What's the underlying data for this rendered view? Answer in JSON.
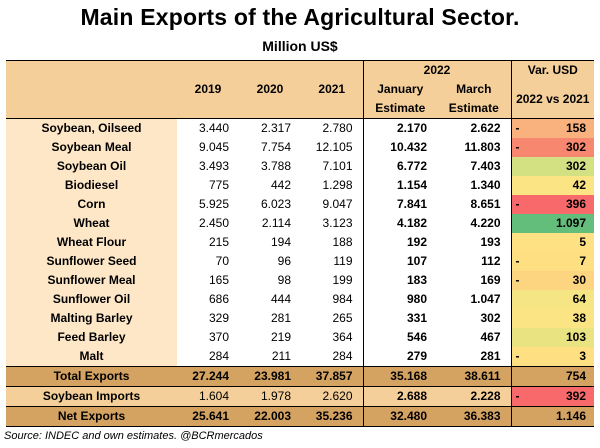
{
  "title": "Main Exports of the Agricultural Sector.",
  "subtitle": "Million US$",
  "source": "Source: INDEC and own estimates. @BCRmercados",
  "chart_data": {
    "type": "table",
    "columns": [
      "2019",
      "2020",
      "2021",
      "January Estimate",
      "March Estimate",
      "Var. USD 2022 vs 2021"
    ],
    "header": {
      "y2019": "2019",
      "y2020": "2020",
      "y2021": "2021",
      "group2022": "2022",
      "jan1": "January",
      "jan2": "Estimate",
      "mar1": "March",
      "mar2": "Estimate",
      "var1": "Var. USD",
      "var2": "2022 vs 2021"
    },
    "rows": [
      {
        "name": "Soybean, Oilseed",
        "y2019": "3.440",
        "y2020": "2.317",
        "y2021": "2.780",
        "jan": "2.170",
        "mar": "2.622",
        "sign": "-",
        "var": "158",
        "color": "#f9b27d"
      },
      {
        "name": "Soybean Meal",
        "y2019": "9.045",
        "y2020": "7.754",
        "y2021": "12.105",
        "jan": "10.432",
        "mar": "11.803",
        "sign": "-",
        "var": "302",
        "color": "#f8876f"
      },
      {
        "name": "Soybean Oil",
        "y2019": "3.493",
        "y2020": "3.788",
        "y2021": "7.101",
        "jan": "6.772",
        "mar": "7.403",
        "sign": "",
        "var": "302",
        "color": "#d3e183"
      },
      {
        "name": "Biodiesel",
        "y2019": "775",
        "y2020": "442",
        "y2021": "1.298",
        "jan": "1.154",
        "mar": "1.340",
        "sign": "",
        "var": "42",
        "color": "#fbe484"
      },
      {
        "name": "Corn",
        "y2019": "5.925",
        "y2020": "6.023",
        "y2021": "9.047",
        "jan": "7.841",
        "mar": "8.651",
        "sign": "-",
        "var": "396",
        "color": "#f8696b"
      },
      {
        "name": "Wheat",
        "y2019": "2.450",
        "y2020": "2.114",
        "y2021": "3.123",
        "jan": "4.182",
        "mar": "4.220",
        "sign": "",
        "var": "1.097",
        "color": "#63be7b"
      },
      {
        "name": "Wheat Flour",
        "y2019": "215",
        "y2020": "194",
        "y2021": "188",
        "jan": "192",
        "mar": "193",
        "sign": "",
        "var": "5",
        "color": "#fee183"
      },
      {
        "name": "Sunflower Seed",
        "y2019": "70",
        "y2020": "96",
        "y2021": "119",
        "jan": "107",
        "mar": "112",
        "sign": "-",
        "var": "7",
        "color": "#fedf82"
      },
      {
        "name": "Sunflower Meal",
        "y2019": "165",
        "y2020": "98",
        "y2021": "199",
        "jan": "183",
        "mar": "169",
        "sign": "-",
        "var": "30",
        "color": "#fdd580"
      },
      {
        "name": "Sunflower Oil",
        "y2019": "686",
        "y2020": "444",
        "y2021": "984",
        "jan": "980",
        "mar": "1.047",
        "sign": "",
        "var": "64",
        "color": "#f5e584"
      },
      {
        "name": "Malting Barley",
        "y2019": "329",
        "y2020": "281",
        "y2021": "265",
        "jan": "331",
        "mar": "302",
        "sign": "",
        "var": "38",
        "color": "#fbe483"
      },
      {
        "name": "Feed Barley",
        "y2019": "370",
        "y2020": "219",
        "y2021": "364",
        "jan": "546",
        "mar": "467",
        "sign": "",
        "var": "103",
        "color": "#eae382"
      },
      {
        "name": "Malt",
        "y2019": "284",
        "y2020": "211",
        "y2021": "284",
        "jan": "279",
        "mar": "281",
        "sign": "-",
        "var": "3",
        "color": "#fee083"
      }
    ],
    "total": {
      "name": "Total Exports",
      "y2019": "27.244",
      "y2020": "23.981",
      "y2021": "37.857",
      "jan": "35.168",
      "mar": "38.611",
      "sign": "",
      "var": "754"
    },
    "imports": {
      "name": "Soybean Imports",
      "y2019": "1.604",
      "y2020": "1.978",
      "y2021": "2.620",
      "jan": "2.688",
      "mar": "2.228",
      "sign": "-",
      "var": "392",
      "color": "#f8696b"
    },
    "net": {
      "name": "Net Exports",
      "y2019": "25.641",
      "y2020": "22.003",
      "y2021": "35.236",
      "jan": "32.480",
      "mar": "36.383",
      "sign": "",
      "var": "1.146"
    }
  }
}
